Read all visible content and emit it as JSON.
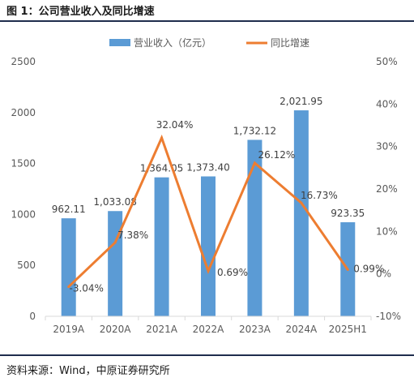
{
  "figure": {
    "title": "图 1：公司营业收入及同比增速",
    "source": "资料来源：Wind，中原证券研究所"
  },
  "colors": {
    "bar": "#5b9bd5",
    "line": "#ed7d31",
    "axis": "#d9d9d9",
    "text": "#595959"
  },
  "chart_data": {
    "type": "bar+line",
    "categories": [
      "2019A",
      "2020A",
      "2021A",
      "2022A",
      "2023A",
      "2024A",
      "2025H1"
    ],
    "series": [
      {
        "name": "营业收入（亿元）",
        "type": "bar",
        "axis": "left",
        "values": [
          962.11,
          1033.08,
          1364.05,
          1373.4,
          1732.12,
          2021.95,
          923.35
        ],
        "labels": [
          "962.11",
          "1,033.08",
          "1,364.05",
          "1,373.40",
          "1,732.12",
          "2,021.95",
          "923.35"
        ]
      },
      {
        "name": "同比增速",
        "type": "line",
        "axis": "right",
        "values": [
          -3.04,
          7.38,
          32.04,
          0.69,
          26.12,
          16.73,
          0.99
        ],
        "labels": [
          "-3.04%",
          "7.38%",
          "32.04%",
          "0.69%",
          "26.12%",
          "16.73%",
          "0.99%"
        ]
      }
    ],
    "y_left": {
      "ylim": [
        0,
        2500
      ],
      "ticks": [
        "0",
        "500",
        "1000",
        "1500",
        "2000",
        "2500"
      ]
    },
    "y_right": {
      "ylim": [
        -10,
        50
      ],
      "ticks": [
        "-10%",
        "0%",
        "10%",
        "20%",
        "30%",
        "40%",
        "50%"
      ]
    },
    "legend": "top-center",
    "grid": false
  }
}
